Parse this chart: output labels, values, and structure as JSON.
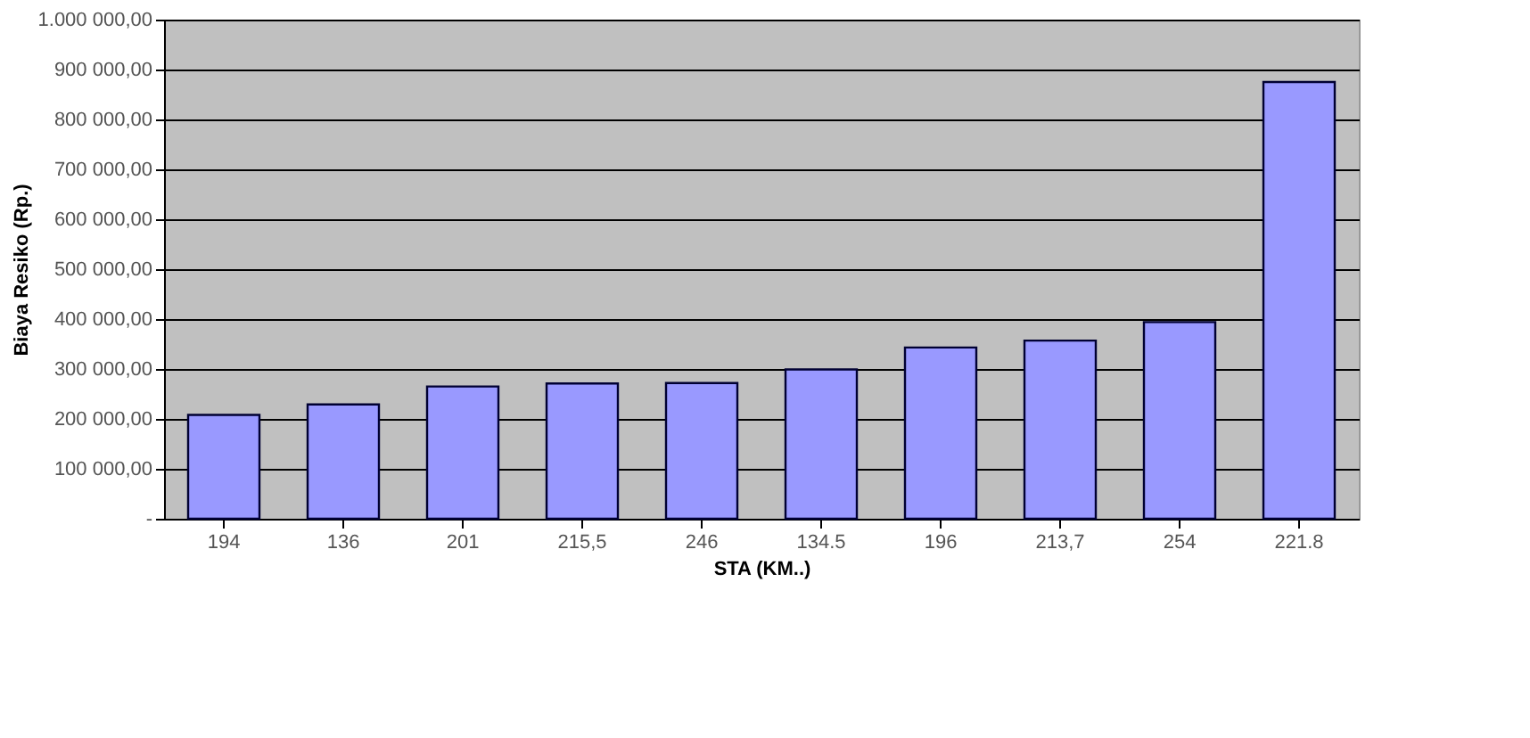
{
  "chart_data": {
    "type": "bar",
    "xlabel": "STA (KM..)",
    "ylabel": "Biaya Resiko (Rp.)",
    "categories": [
      "194",
      "136",
      "201",
      "215,5",
      "246",
      "134.5",
      "196",
      "213,7",
      "254",
      "221.8"
    ],
    "series": [
      {
        "color": "#9999ff",
        "values": [
          208000,
          229000,
          265000,
          271000,
          272000,
          299000,
          343000,
          357000,
          394000,
          875000
        ]
      }
    ],
    "ylim": [
      0,
      1000000
    ],
    "yticks": [
      {
        "value": 0,
        "label": "-"
      },
      {
        "value": 100000,
        "label": "100 000,00"
      },
      {
        "value": 200000,
        "label": "200 000,00"
      },
      {
        "value": 300000,
        "label": "300 000,00"
      },
      {
        "value": 400000,
        "label": "400 000,00"
      },
      {
        "value": 500000,
        "label": "500 000,00"
      },
      {
        "value": 600000,
        "label": "600 000,00"
      },
      {
        "value": 700000,
        "label": "700 000,00"
      },
      {
        "value": 800000,
        "label": "800 000,00"
      },
      {
        "value": 900000,
        "label": "900 000,00"
      },
      {
        "value": 1000000,
        "label": "1.000 000,00"
      }
    ],
    "grid": "y"
  }
}
